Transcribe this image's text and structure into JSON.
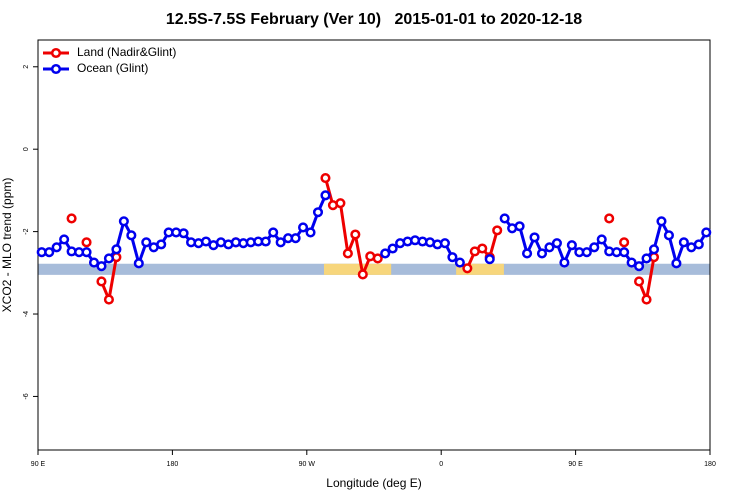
{
  "chart_data": {
    "type": "line",
    "title": "12.5S-7.5S February (Ver 10)   2015-01-01 to 2020-12-18",
    "xlabel": "Longitude (deg E)",
    "ylabel": "XCO2 - MLO trend (ppm)",
    "xlim": [
      90,
      540
    ],
    "ylim": [
      -7.3,
      2.65
    ],
    "xticks": [
      {
        "value": 90,
        "label": "90 E"
      },
      {
        "value": 180,
        "label": "180"
      },
      {
        "value": 270,
        "label": "90 W"
      },
      {
        "value": 360,
        "label": "0"
      },
      {
        "value": 450,
        "label": "90 E"
      },
      {
        "value": 540,
        "label": "180"
      }
    ],
    "yticks": [
      -6,
      -4,
      -2,
      0,
      2
    ],
    "legend": "top-left",
    "band": {
      "range": [
        -3.05,
        -2.78
      ],
      "color": "#a7bcda",
      "land_color": "#f7d67c",
      "land": [
        [
          281.5,
          326.5
        ],
        [
          370,
          402
        ]
      ]
    },
    "x": [
      92.5,
      97.5,
      102.5,
      107.5,
      112.5,
      117.5,
      122.5,
      127.5,
      132.5,
      137.5,
      142.5,
      147.5,
      152.5,
      157.5,
      162.5,
      167.5,
      172.5,
      177.5,
      182.5,
      187.5,
      192.5,
      197.5,
      202.5,
      207.5,
      212.5,
      217.5,
      222.5,
      227.5,
      232.5,
      237.5,
      242.5,
      247.5,
      252.5,
      257.5,
      262.5,
      267.5,
      272.5,
      277.5,
      282.5,
      287.5,
      292.5,
      297.5,
      302.5,
      307.5,
      312.5,
      317.5,
      322.5,
      327.5,
      332.5,
      337.5,
      342.5,
      347.5,
      352.5,
      357.5,
      362.5,
      367.5,
      372.5,
      377.5,
      382.5,
      387.5,
      392.5,
      397.5,
      402.5,
      407.5,
      412.5,
      417.5,
      422.5,
      427.5,
      432.5,
      437.5,
      442.5,
      447.5,
      452.5,
      457.5,
      462.5,
      467.5,
      472.5,
      477.5,
      482.5,
      487.5,
      492.5,
      497.5,
      502.5,
      507.5,
      512.5,
      517.5,
      522.5,
      527.5,
      532.5,
      537.5
    ],
    "series": [
      {
        "name": "Land (Nadir&Glint)",
        "color": "#ee0000",
        "values": [
          null,
          null,
          null,
          null,
          -1.68,
          null,
          -2.26,
          null,
          -3.21,
          -3.65,
          -2.62,
          null,
          null,
          null,
          null,
          null,
          null,
          null,
          null,
          null,
          null,
          null,
          null,
          null,
          null,
          null,
          -2.26,
          null,
          null,
          null,
          null,
          null,
          null,
          null,
          null,
          null,
          null,
          null,
          -0.7,
          -1.36,
          -1.31,
          -2.53,
          -2.07,
          -3.04,
          -2.6,
          -2.65,
          null,
          null,
          null,
          null,
          null,
          null,
          null,
          null,
          null,
          null,
          null,
          -2.89,
          -2.48,
          -2.41,
          -2.62,
          -1.97,
          null,
          null,
          null,
          null,
          null,
          null,
          null,
          null,
          null,
          null,
          null,
          null,
          null,
          null,
          -1.68,
          null,
          -2.26,
          null,
          -3.21,
          -3.65,
          -2.62,
          null,
          null,
          null,
          null,
          null,
          null,
          null
        ]
      },
      {
        "name": "Ocean (Glint)",
        "color": "#0000ee",
        "values": [
          -2.5,
          -2.5,
          -2.38,
          -2.19,
          -2.48,
          -2.5,
          -2.5,
          -2.75,
          -2.84,
          -2.65,
          -2.43,
          -1.75,
          -2.09,
          -2.77,
          -2.26,
          -2.38,
          -2.31,
          -2.02,
          -2.02,
          -2.04,
          -2.26,
          -2.28,
          -2.24,
          -2.33,
          -2.26,
          -2.31,
          -2.26,
          -2.28,
          -2.26,
          -2.24,
          -2.24,
          -2.02,
          -2.26,
          -2.16,
          -2.16,
          -1.9,
          -2.02,
          -1.53,
          -1.12,
          null,
          null,
          null,
          null,
          null,
          null,
          null,
          -2.53,
          -2.41,
          -2.28,
          -2.24,
          -2.21,
          -2.24,
          -2.26,
          -2.31,
          -2.28,
          -2.62,
          -2.75,
          null,
          null,
          null,
          -2.67,
          null,
          -1.68,
          -1.92,
          -1.87,
          -2.53,
          -2.14,
          -2.53,
          -2.38,
          -2.28,
          -2.75,
          -2.33,
          -2.5,
          -2.5,
          -2.38,
          -2.19,
          -2.48,
          -2.5,
          -2.5,
          -2.75,
          -2.84,
          -2.65,
          -2.43,
          -1.75,
          -2.09,
          -2.77,
          -2.26,
          -2.38,
          -2.31,
          -2.02
        ]
      }
    ]
  }
}
